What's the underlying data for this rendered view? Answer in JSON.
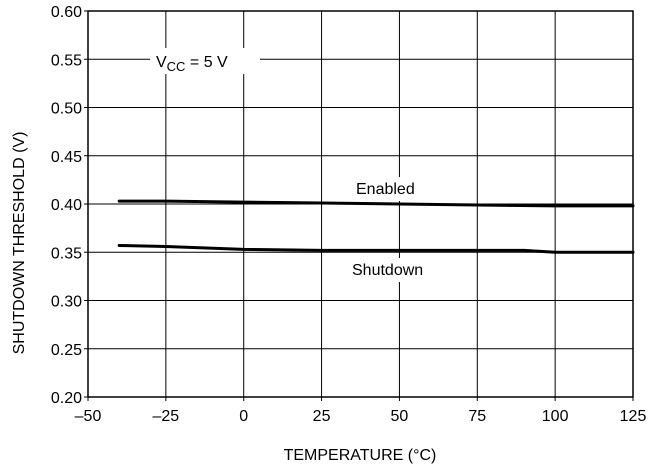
{
  "chart_data": {
    "type": "line",
    "title": "",
    "xlabel": "TEMPERATURE (°C)",
    "ylabel": "SHUTDOWN THRESHOLD (V)",
    "xlim": [
      -50,
      125
    ],
    "ylim": [
      0.2,
      0.6
    ],
    "x_ticks": [
      -50,
      -25,
      0,
      25,
      50,
      75,
      100,
      125
    ],
    "x_tick_labels": [
      "–50",
      "–25",
      "0",
      "25",
      "50",
      "75",
      "100",
      "125"
    ],
    "y_ticks": [
      0.2,
      0.25,
      0.3,
      0.35,
      0.4,
      0.45,
      0.5,
      0.55,
      0.6
    ],
    "y_tick_labels": [
      "0.20",
      "0.25",
      "0.30",
      "0.35",
      "0.40",
      "0.45",
      "0.50",
      "0.55",
      "0.60"
    ],
    "grid": true,
    "legend": "none",
    "line_color": "#000000",
    "series": [
      {
        "name": "Enabled",
        "x": [
          -40,
          -25,
          0,
          25,
          50,
          75,
          100,
          125
        ],
        "y": [
          0.403,
          0.403,
          0.402,
          0.401,
          0.4,
          0.399,
          0.398,
          0.398
        ]
      },
      {
        "name": "Shutdown",
        "x": [
          -40,
          -25,
          0,
          25,
          50,
          75,
          90,
          100,
          125
        ],
        "y": [
          0.357,
          0.356,
          0.353,
          0.352,
          0.352,
          0.352,
          0.352,
          0.35,
          0.35
        ]
      }
    ],
    "annotations": {
      "vcc_main": "V",
      "vcc_sub": "CC",
      "vcc_rest": " = 5 V"
    }
  }
}
